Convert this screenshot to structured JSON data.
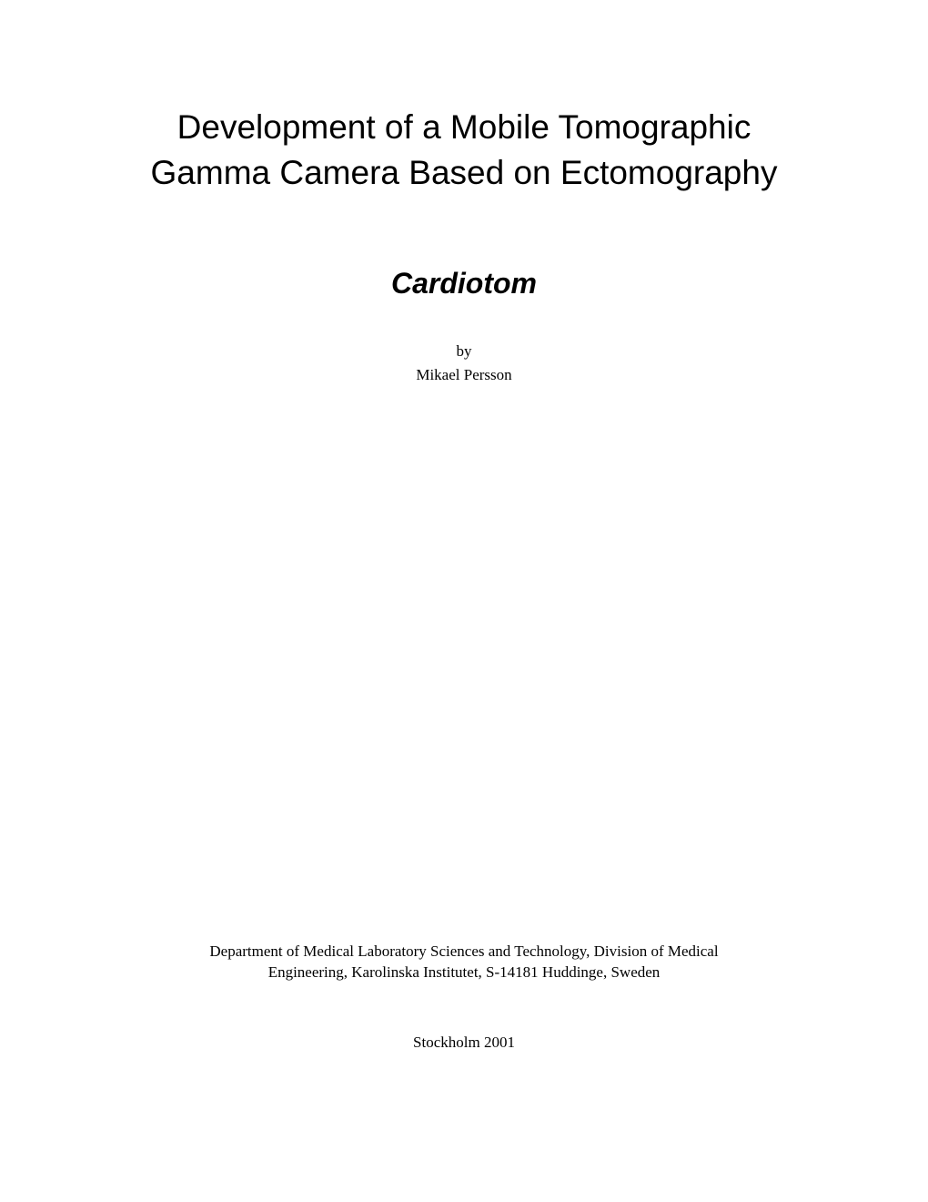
{
  "title": {
    "line1": "Development of a Mobile Tomographic",
    "line2": "Gamma Camera Based on Ectomography"
  },
  "subtitle": "Cardiotom",
  "by_label": "by",
  "author": "Mikael Persson",
  "affiliation": {
    "line1": "Department of Medical Laboratory Sciences and Technology, Division of Medical",
    "line2": "Engineering, Karolinska Institutet, S-14181 Huddinge, Sweden"
  },
  "location": "Stockholm 2001",
  "colors": {
    "background": "#ffffff",
    "text": "#000000"
  },
  "fonts": {
    "title_family": "Arial",
    "body_family": "Times New Roman",
    "title_size": 37,
    "subtitle_size": 32,
    "body_size": 17
  }
}
